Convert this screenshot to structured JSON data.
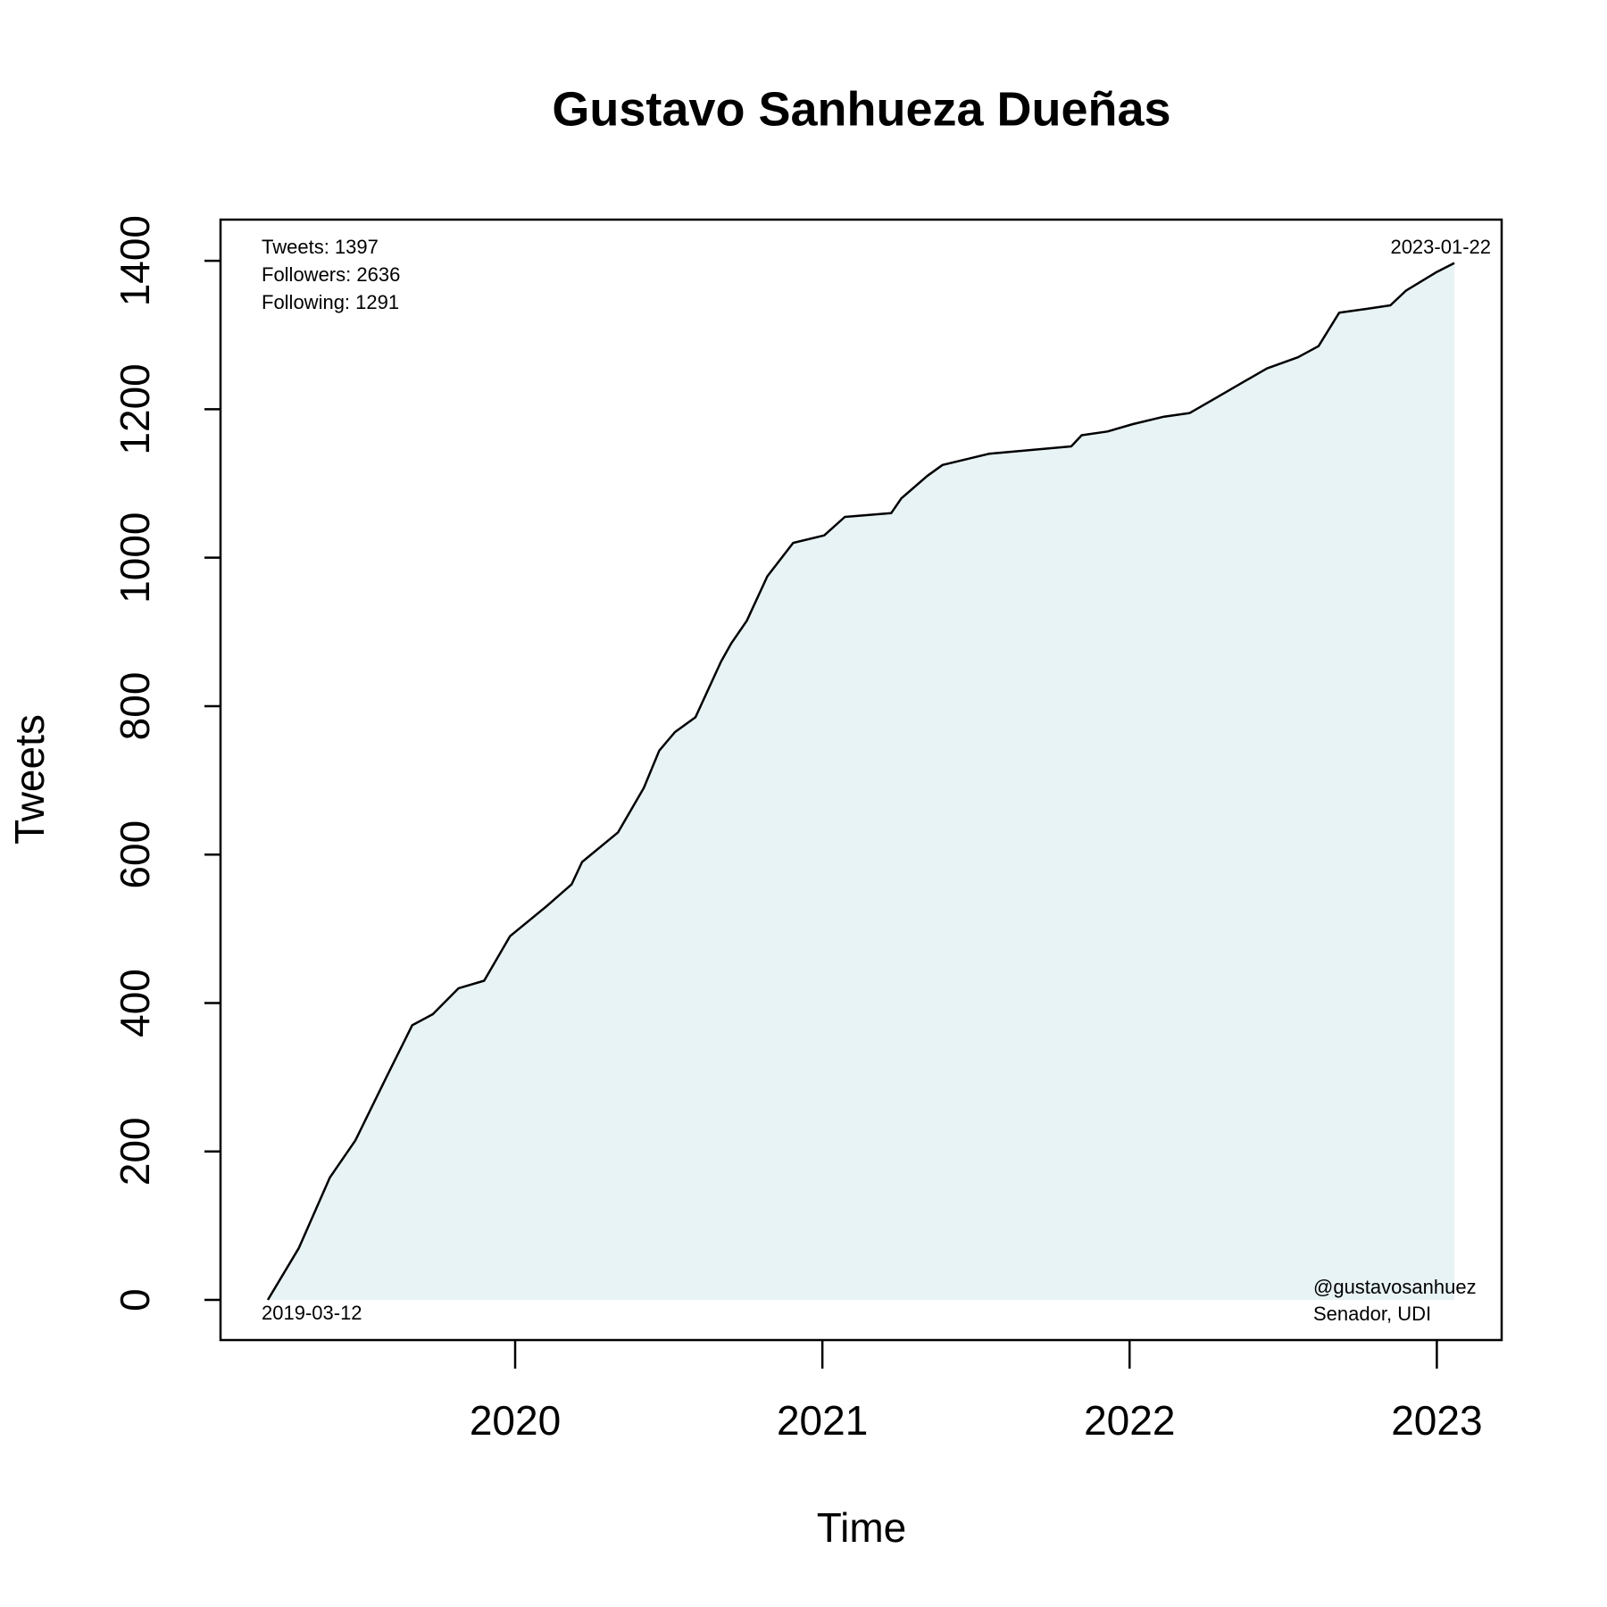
{
  "chart_data": {
    "type": "line",
    "title": "Gustavo Sanhueza Dueñas",
    "x_label": "Time",
    "y_label": "Tweets",
    "x": [
      2019.195,
      2019.296,
      2019.397,
      2019.48,
      2019.581,
      2019.665,
      2019.732,
      2019.816,
      2019.899,
      2019.983,
      2020.101,
      2020.184,
      2020.218,
      2020.335,
      2020.419,
      2020.469,
      2020.52,
      2020.587,
      2020.67,
      2020.704,
      2020.754,
      2020.821,
      2020.905,
      2021.006,
      2021.073,
      2021.224,
      2021.257,
      2021.341,
      2021.391,
      2021.542,
      2021.676,
      2021.81,
      2021.844,
      2021.928,
      2022.011,
      2022.112,
      2022.196,
      2022.28,
      2022.363,
      2022.447,
      2022.548,
      2022.615,
      2022.682,
      2022.766,
      2022.849,
      2022.9,
      2023.0,
      2023.057
    ],
    "series": [
      {
        "name": "Tweets",
        "color": "#000000",
        "fill": "#e8f3f6",
        "values": [
          0,
          70,
          165,
          215,
          300,
          370,
          385,
          420,
          430,
          490,
          530,
          560,
          590,
          630,
          690,
          740,
          765,
          785,
          860,
          885,
          915,
          975,
          1020,
          1030,
          1055,
          1060,
          1080,
          1110,
          1125,
          1140,
          1145,
          1150,
          1165,
          1170,
          1180,
          1190,
          1195,
          1215,
          1235,
          1255,
          1270,
          1285,
          1330,
          1335,
          1340,
          1360,
          1385,
          1397
        ]
      }
    ],
    "xlim": [
      2019.041,
      2023.211
    ],
    "ylim": [
      -54.1,
      1455.5
    ],
    "xticks": [
      2020,
      2021,
      2022,
      2023
    ],
    "yticks": [
      0,
      200,
      400,
      600,
      800,
      1000,
      1200,
      1400
    ],
    "annotations": {
      "top_left": [
        "Tweets: 1397",
        "Followers: 2636",
        "Following: 1291"
      ],
      "top_right": "2023-01-22",
      "bottom_left": "2019-03-12",
      "bottom_right": [
        "@gustavosanhuez",
        "Senador, UDI"
      ]
    }
  }
}
